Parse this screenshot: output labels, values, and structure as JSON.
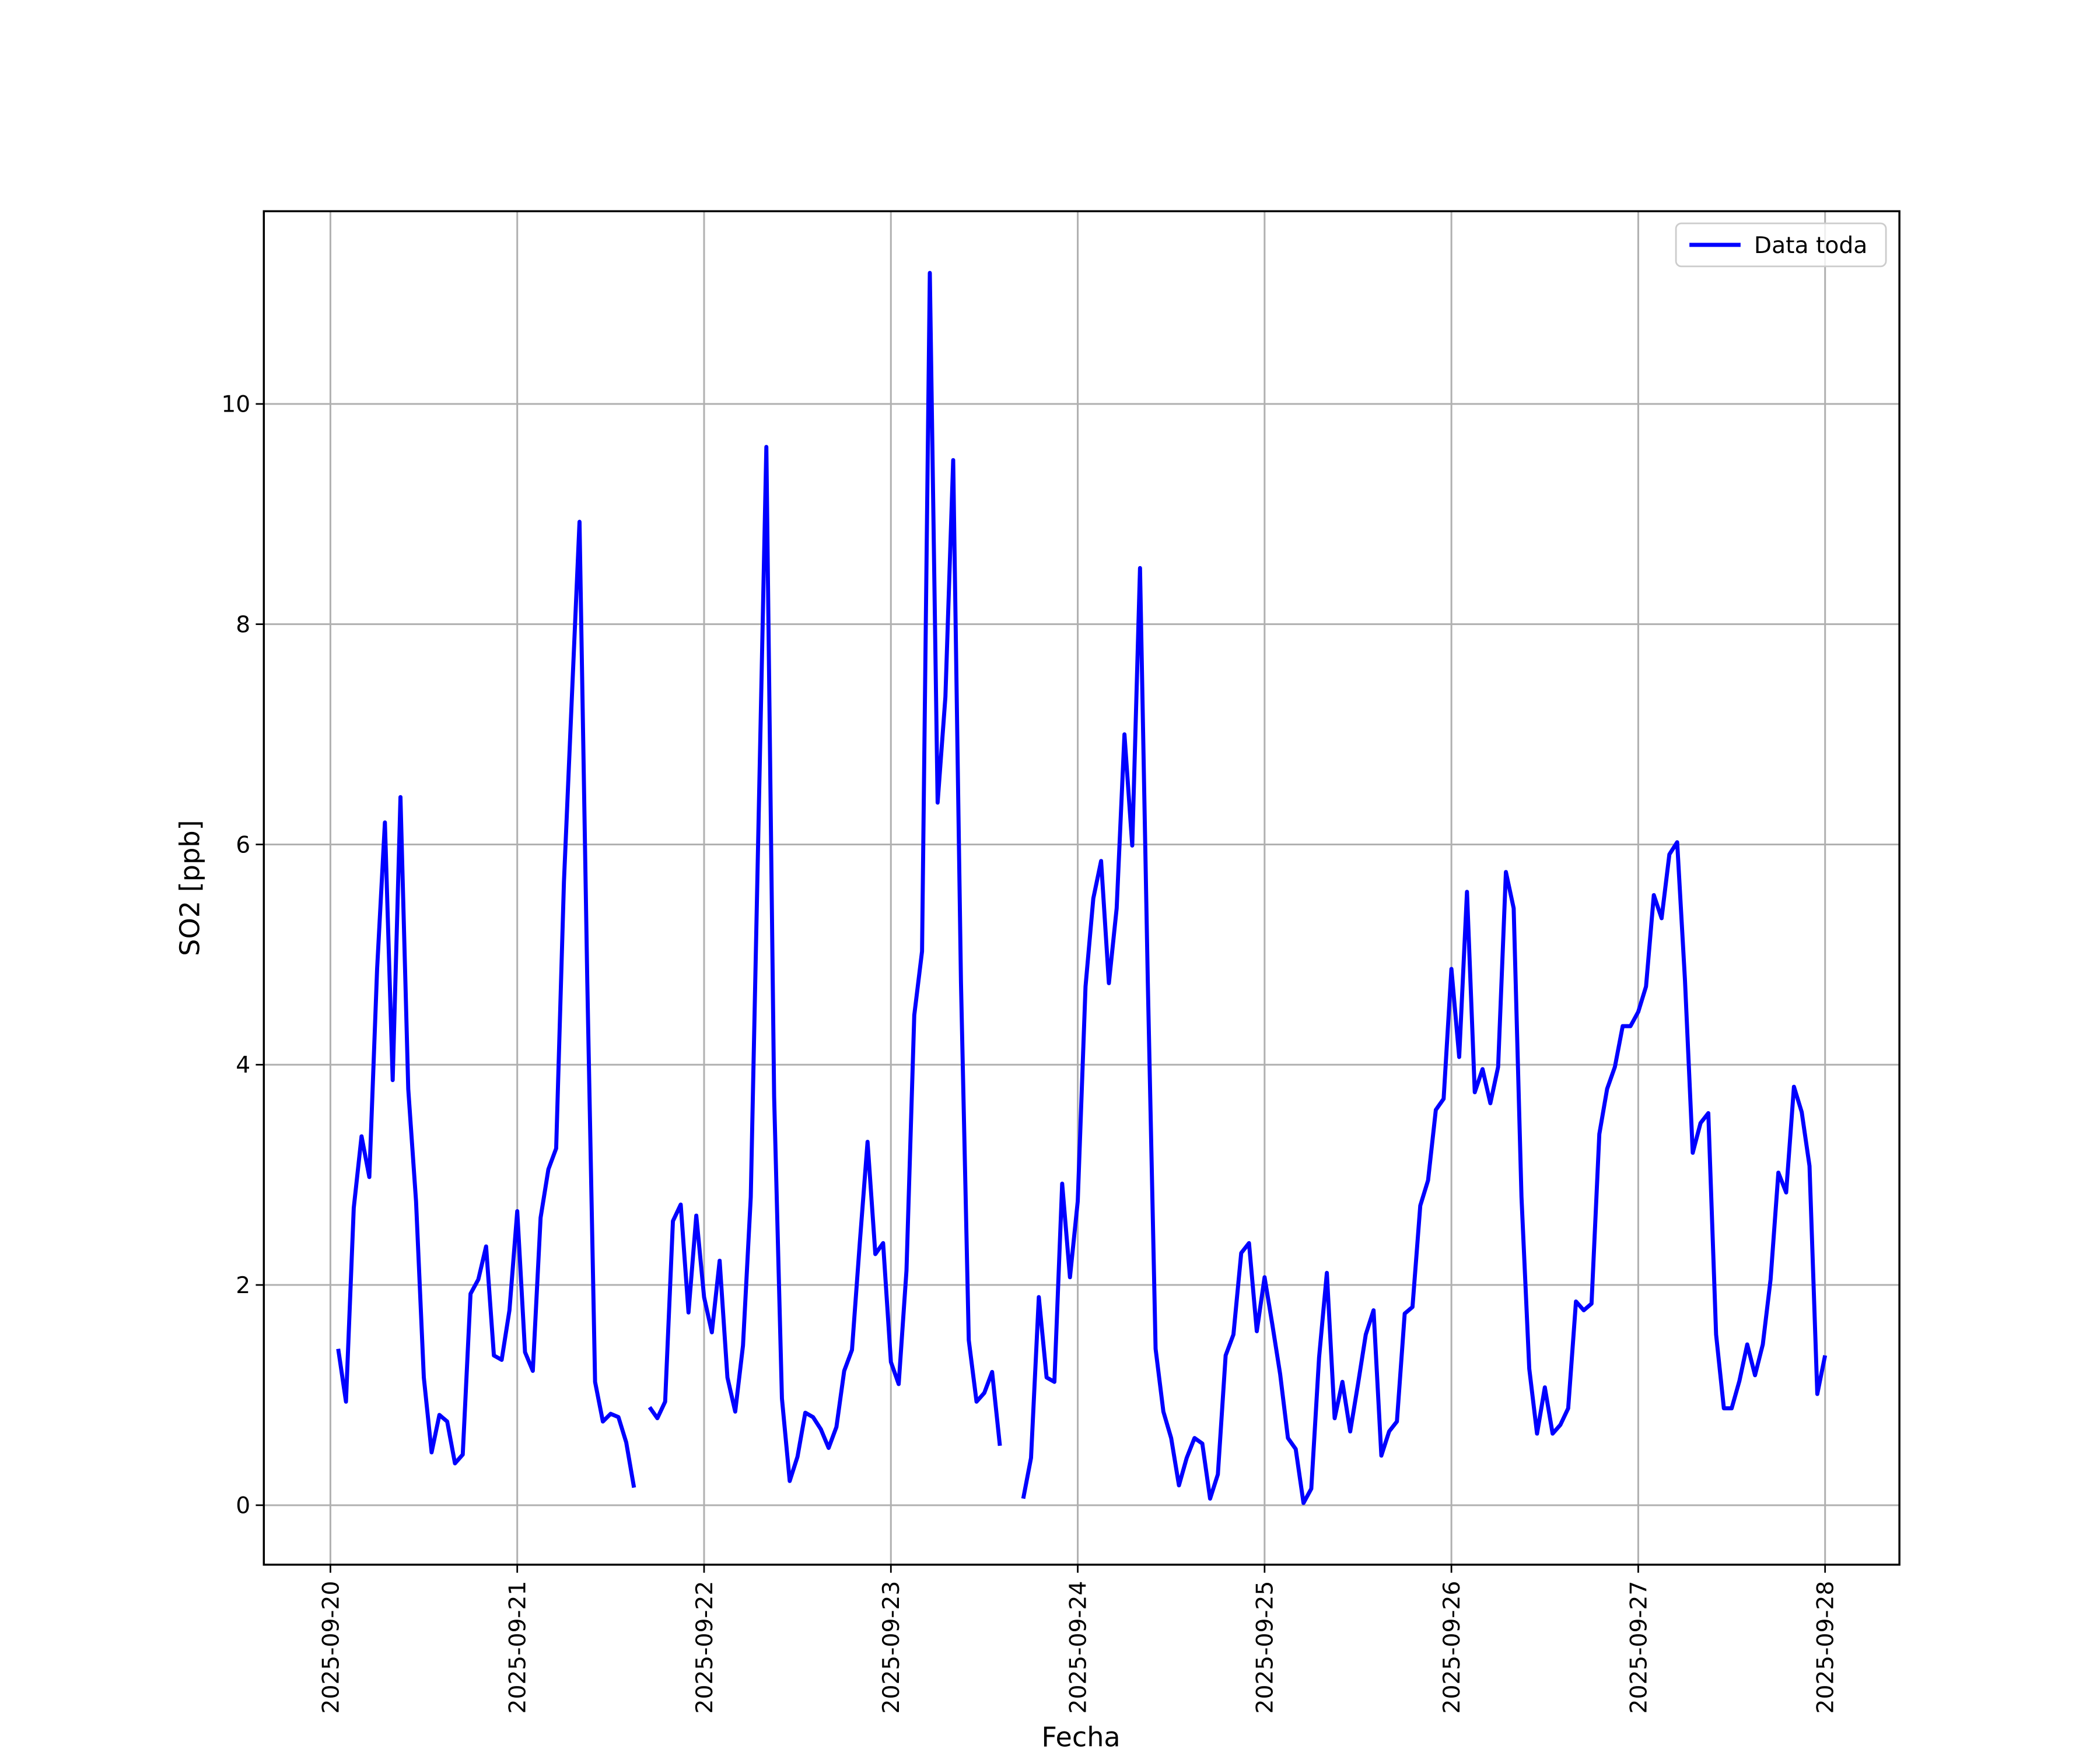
{
  "chart_data": {
    "type": "line",
    "xlabel": "Fecha",
    "ylabel": "SO2 [ppb]",
    "x": [
      "2025-09-20T01:00",
      "2025-09-20T02:00",
      "2025-09-20T03:00",
      "2025-09-20T04:00",
      "2025-09-20T05:00",
      "2025-09-20T06:00",
      "2025-09-20T07:00",
      "2025-09-20T08:00",
      "2025-09-20T09:00",
      "2025-09-20T10:00",
      "2025-09-20T11:00",
      "2025-09-20T12:00",
      "2025-09-20T13:00",
      "2025-09-20T14:00",
      "2025-09-20T15:00",
      "2025-09-20T16:00",
      "2025-09-20T17:00",
      "2025-09-20T18:00",
      "2025-09-20T19:00",
      "2025-09-20T20:00",
      "2025-09-20T21:00",
      "2025-09-20T22:00",
      "2025-09-20T23:00",
      "2025-09-21T00:00",
      "2025-09-21T01:00",
      "2025-09-21T02:00",
      "2025-09-21T03:00",
      "2025-09-21T04:00",
      "2025-09-21T05:00",
      "2025-09-21T06:00",
      "2025-09-21T07:00",
      "2025-09-21T08:00",
      "2025-09-21T09:00",
      "2025-09-21T10:00",
      "2025-09-21T11:00",
      "2025-09-21T12:00",
      "2025-09-21T13:00",
      "2025-09-21T14:00",
      "2025-09-21T15:00",
      "2025-09-21T16:00",
      "2025-09-21T17:00",
      "2025-09-21T18:00",
      "2025-09-21T19:00",
      "2025-09-21T20:00",
      "2025-09-21T21:00",
      "2025-09-21T22:00",
      "2025-09-21T23:00",
      "2025-09-22T00:00",
      "2025-09-22T01:00",
      "2025-09-22T02:00",
      "2025-09-22T03:00",
      "2025-09-22T04:00",
      "2025-09-22T05:00",
      "2025-09-22T06:00",
      "2025-09-22T07:00",
      "2025-09-22T08:00",
      "2025-09-22T09:00",
      "2025-09-22T10:00",
      "2025-09-22T11:00",
      "2025-09-22T12:00",
      "2025-09-22T13:00",
      "2025-09-22T14:00",
      "2025-09-22T15:00",
      "2025-09-22T16:00",
      "2025-09-22T17:00",
      "2025-09-22T18:00",
      "2025-09-22T19:00",
      "2025-09-22T20:00",
      "2025-09-22T21:00",
      "2025-09-22T22:00",
      "2025-09-22T23:00",
      "2025-09-23T00:00",
      "2025-09-23T01:00",
      "2025-09-23T02:00",
      "2025-09-23T03:00",
      "2025-09-23T04:00",
      "2025-09-23T05:00",
      "2025-09-23T06:00",
      "2025-09-23T07:00",
      "2025-09-23T08:00",
      "2025-09-23T09:00",
      "2025-09-23T10:00",
      "2025-09-23T11:00",
      "2025-09-23T12:00",
      "2025-09-23T13:00",
      "2025-09-23T14:00",
      "2025-09-23T15:00",
      "2025-09-23T16:00",
      "2025-09-23T17:00",
      "2025-09-23T18:00",
      "2025-09-23T19:00",
      "2025-09-23T20:00",
      "2025-09-23T21:00",
      "2025-09-23T22:00",
      "2025-09-23T23:00",
      "2025-09-24T00:00",
      "2025-09-24T01:00",
      "2025-09-24T02:00",
      "2025-09-24T03:00",
      "2025-09-24T04:00",
      "2025-09-24T05:00",
      "2025-09-24T06:00",
      "2025-09-24T07:00",
      "2025-09-24T08:00",
      "2025-09-24T09:00",
      "2025-09-24T10:00",
      "2025-09-24T11:00",
      "2025-09-24T12:00",
      "2025-09-24T13:00",
      "2025-09-24T14:00",
      "2025-09-24T15:00",
      "2025-09-24T16:00",
      "2025-09-24T17:00",
      "2025-09-24T18:00",
      "2025-09-24T19:00",
      "2025-09-24T20:00",
      "2025-09-24T21:00",
      "2025-09-24T22:00",
      "2025-09-24T23:00",
      "2025-09-25T00:00",
      "2025-09-25T01:00",
      "2025-09-25T02:00",
      "2025-09-25T03:00",
      "2025-09-25T04:00",
      "2025-09-25T05:00",
      "2025-09-25T06:00",
      "2025-09-25T07:00",
      "2025-09-25T08:00",
      "2025-09-25T09:00",
      "2025-09-25T10:00",
      "2025-09-25T11:00",
      "2025-09-25T12:00",
      "2025-09-25T13:00",
      "2025-09-25T14:00",
      "2025-09-25T15:00",
      "2025-09-25T16:00",
      "2025-09-25T17:00",
      "2025-09-25T18:00",
      "2025-09-25T19:00",
      "2025-09-25T20:00",
      "2025-09-25T21:00",
      "2025-09-25T22:00",
      "2025-09-25T23:00",
      "2025-09-26T00:00",
      "2025-09-26T01:00",
      "2025-09-26T02:00",
      "2025-09-26T03:00",
      "2025-09-26T04:00",
      "2025-09-26T05:00",
      "2025-09-26T06:00",
      "2025-09-26T07:00",
      "2025-09-26T08:00",
      "2025-09-26T09:00",
      "2025-09-26T10:00",
      "2025-09-26T11:00",
      "2025-09-26T12:00",
      "2025-09-26T13:00",
      "2025-09-26T14:00",
      "2025-09-26T15:00",
      "2025-09-26T16:00",
      "2025-09-26T17:00",
      "2025-09-26T18:00",
      "2025-09-26T19:00",
      "2025-09-26T20:00",
      "2025-09-26T21:00",
      "2025-09-26T22:00",
      "2025-09-26T23:00",
      "2025-09-27T00:00",
      "2025-09-27T01:00",
      "2025-09-27T02:00",
      "2025-09-27T03:00",
      "2025-09-27T04:00",
      "2025-09-27T05:00",
      "2025-09-27T06:00",
      "2025-09-27T07:00",
      "2025-09-27T08:00",
      "2025-09-27T09:00",
      "2025-09-27T10:00",
      "2025-09-27T11:00",
      "2025-09-27T12:00",
      "2025-09-27T13:00",
      "2025-09-27T14:00",
      "2025-09-27T15:00",
      "2025-09-27T16:00",
      "2025-09-27T17:00",
      "2025-09-27T18:00",
      "2025-09-27T19:00",
      "2025-09-27T20:00",
      "2025-09-27T21:00",
      "2025-09-27T22:00",
      "2025-09-27T23:00",
      "2025-09-28T00:00"
    ],
    "series": [
      {
        "name": "Data toda",
        "color": "#0000ff",
        "values": [
          1.42,
          0.94,
          2.7,
          3.35,
          2.98,
          4.87,
          6.2,
          3.86,
          6.43,
          3.78,
          2.76,
          1.16,
          0.48,
          0.82,
          0.76,
          0.38,
          0.46,
          1.92,
          2.05,
          2.35,
          1.36,
          1.32,
          1.77,
          2.67,
          1.39,
          1.22,
          2.61,
          3.05,
          3.24,
          5.66,
          7.31,
          8.93,
          4.75,
          1.12,
          0.76,
          0.83,
          0.8,
          0.57,
          0.16,
          null,
          0.89,
          0.79,
          0.94,
          2.58,
          2.73,
          1.75,
          2.63,
          1.89,
          1.57,
          2.22,
          1.16,
          0.85,
          1.45,
          2.8,
          6.21,
          9.61,
          3.71,
          0.97,
          0.22,
          0.44,
          0.84,
          0.8,
          0.69,
          0.52,
          0.71,
          1.22,
          1.41,
          2.38,
          3.3,
          2.28,
          2.38,
          1.3,
          1.1,
          2.13,
          4.45,
          5.03,
          11.19,
          6.38,
          7.34,
          9.49,
          4.75,
          1.5,
          0.94,
          1.02,
          1.21,
          0.54,
          null,
          null,
          0.06,
          0.43,
          1.89,
          1.16,
          1.12,
          2.92,
          2.07,
          2.76,
          4.71,
          5.51,
          5.85,
          4.74,
          5.42,
          7.0,
          5.99,
          8.51,
          4.75,
          1.42,
          0.85,
          0.61,
          0.18,
          0.43,
          0.61,
          0.56,
          0.06,
          0.28,
          1.36,
          1.55,
          2.29,
          2.38,
          1.58,
          2.07,
          1.64,
          1.19,
          0.61,
          0.51,
          0.02,
          0.15,
          1.34,
          2.11,
          0.79,
          1.12,
          0.67,
          1.1,
          1.55,
          1.77,
          0.45,
          0.67,
          0.76,
          1.74,
          1.8,
          2.72,
          2.95,
          3.59,
          3.69,
          4.87,
          4.07,
          5.57,
          3.75,
          3.96,
          3.65,
          3.98,
          5.75,
          5.42,
          2.8,
          1.24,
          0.65,
          1.07,
          0.65,
          0.73,
          0.88,
          1.85,
          1.77,
          1.83,
          3.37,
          3.78,
          3.98,
          4.35,
          4.35,
          4.48,
          4.71,
          5.54,
          5.33,
          5.91,
          6.02,
          4.77,
          3.2,
          3.47,
          3.56,
          1.55,
          0.88,
          0.88,
          1.13,
          1.46,
          1.18,
          1.46,
          2.05,
          3.02,
          2.84,
          3.8,
          3.57,
          3.08,
          1.01,
          1.36
        ]
      }
    ],
    "xlim": [
      "2025-09-19T15:27",
      "2025-09-28T09:33"
    ],
    "xticks": [
      "2025-09-20",
      "2025-09-21",
      "2025-09-22",
      "2025-09-23",
      "2025-09-24",
      "2025-09-25",
      "2025-09-26",
      "2025-09-27",
      "2025-09-28"
    ],
    "ylim": [
      -0.54,
      11.75
    ],
    "yticks": [
      0,
      2,
      4,
      6,
      8,
      10
    ],
    "grid": true,
    "legend": "upper right"
  }
}
